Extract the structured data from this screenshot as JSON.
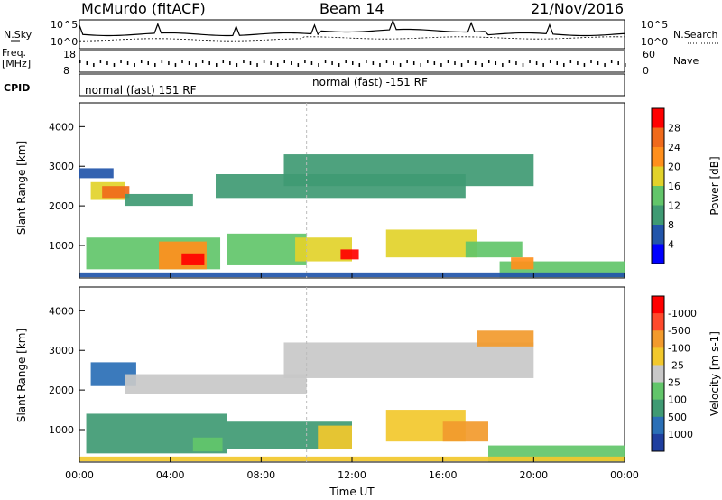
{
  "header": {
    "station": "McMurdo (fitACF)",
    "beam": "Beam 14",
    "date": "21/Nov/2016"
  },
  "info_panels": {
    "nsky_label": "N.Sky",
    "nsearch_label": "N.Search",
    "freq_label_1": "Freq.",
    "freq_label_2": "[MHz]",
    "nave_label": "Nave",
    "cpid_label": "CPID",
    "nsky_ticks": [
      "10^5",
      "10^0"
    ],
    "nsearch_ticks": [
      "10^5",
      "10^0"
    ],
    "freq_ticks": [
      "18",
      "8"
    ],
    "nave_ticks": [
      "60",
      "0"
    ],
    "cpid_segments": [
      "normal (fast) 151 RF",
      "normal (fast) -151 RF"
    ]
  },
  "chart_data": [
    {
      "type": "heatmap",
      "title": "",
      "xlabel": "Time UT",
      "ylabel": "Slant Range [km]",
      "x_ticks": [
        "00:00",
        "04:00",
        "08:00",
        "12:00",
        "16:00",
        "20:00",
        "00:00"
      ],
      "y_ticks": [
        "1000",
        "2000",
        "3000",
        "4000"
      ],
      "ylim": [
        180,
        4600
      ],
      "colorbar": {
        "label": "Power [dB]",
        "ticks": [
          "4",
          "8",
          "12",
          "16",
          "20",
          "24",
          "28"
        ],
        "colors": [
          "#0000ff",
          "#2255aa",
          "#3f9a73",
          "#62c56a",
          "#e2d22a",
          "#ff8f1c",
          "#f06a1b",
          "#ff0000"
        ]
      },
      "patches": [
        {
          "t0": 0.5,
          "t1": 2.0,
          "r0": 2150,
          "r1": 2600,
          "level": 4
        },
        {
          "t0": 1.0,
          "t1": 2.2,
          "r0": 2200,
          "r1": 2500,
          "level": 6
        },
        {
          "t0": 0.0,
          "t1": 1.5,
          "r0": 2700,
          "r1": 2950,
          "level": 1
        },
        {
          "t0": 2.0,
          "t1": 5.0,
          "r0": 2000,
          "r1": 2300,
          "level": 2
        },
        {
          "t0": 0.3,
          "t1": 6.2,
          "r0": 400,
          "r1": 1200,
          "level": 3
        },
        {
          "t0": 3.5,
          "t1": 5.6,
          "r0": 400,
          "r1": 1100,
          "level": 5
        },
        {
          "t0": 4.5,
          "t1": 5.5,
          "r0": 500,
          "r1": 800,
          "level": 7
        },
        {
          "t0": 6.5,
          "t1": 10.0,
          "r0": 500,
          "r1": 1300,
          "level": 3
        },
        {
          "t0": 9.5,
          "t1": 12.0,
          "r0": 600,
          "r1": 1200,
          "level": 4
        },
        {
          "t0": 11.5,
          "t1": 12.3,
          "r0": 650,
          "r1": 900,
          "level": 7
        },
        {
          "t0": 6.0,
          "t1": 17.0,
          "r0": 2200,
          "r1": 2800,
          "level": 2
        },
        {
          "t0": 9.0,
          "t1": 20.0,
          "r0": 2500,
          "r1": 3300,
          "level": 2
        },
        {
          "t0": 13.5,
          "t1": 17.5,
          "r0": 700,
          "r1": 1400,
          "level": 4
        },
        {
          "t0": 17.0,
          "t1": 19.5,
          "r0": 700,
          "r1": 1100,
          "level": 3
        },
        {
          "t0": 18.5,
          "t1": 24.0,
          "r0": 200,
          "r1": 600,
          "level": 3
        },
        {
          "t0": 19.0,
          "t1": 20.0,
          "r0": 400,
          "r1": 700,
          "level": 5
        },
        {
          "t0": 0.0,
          "t1": 24.0,
          "r0": 200,
          "r1": 320,
          "level": 1
        }
      ]
    },
    {
      "type": "heatmap",
      "title": "",
      "xlabel": "Time UT",
      "ylabel": "Slant Range [km]",
      "x_ticks": [
        "00:00",
        "04:00",
        "08:00",
        "12:00",
        "16:00",
        "20:00",
        "00:00"
      ],
      "y_ticks": [
        "1000",
        "2000",
        "3000",
        "4000"
      ],
      "ylim": [
        180,
        4600
      ],
      "colorbar": {
        "label": "Velocity [m s-1]",
        "ticks": [
          "1000",
          "500",
          "100",
          "25",
          "-25",
          "-100",
          "-500",
          "-1000"
        ],
        "colors": [
          "#1f3f9f",
          "#2a6fb6",
          "#3f9a73",
          "#62c56a",
          "#c8c8c8",
          "#f2c82c",
          "#f29a2c",
          "#ff4a2c",
          "#ff0000"
        ]
      },
      "patches": [
        {
          "t0": 0.5,
          "t1": 2.5,
          "r0": 2100,
          "r1": 2700,
          "level": 1
        },
        {
          "t0": 2.0,
          "t1": 10.0,
          "r0": 1900,
          "r1": 2400,
          "level": 4
        },
        {
          "t0": 9.0,
          "t1": 20.0,
          "r0": 2300,
          "r1": 3200,
          "level": 4
        },
        {
          "t0": 0.3,
          "t1": 6.5,
          "r0": 400,
          "r1": 1400,
          "level": 2
        },
        {
          "t0": 5.0,
          "t1": 6.3,
          "r0": 450,
          "r1": 800,
          "level": 3
        },
        {
          "t0": 6.5,
          "t1": 12.0,
          "r0": 500,
          "r1": 1200,
          "level": 2
        },
        {
          "t0": 10.5,
          "t1": 12.0,
          "r0": 500,
          "r1": 1100,
          "level": 5
        },
        {
          "t0": 13.5,
          "t1": 17.0,
          "r0": 700,
          "r1": 1500,
          "level": 5
        },
        {
          "t0": 16.0,
          "t1": 18.0,
          "r0": 700,
          "r1": 1200,
          "level": 6
        },
        {
          "t0": 18.0,
          "t1": 24.0,
          "r0": 200,
          "r1": 600,
          "level": 3
        },
        {
          "t0": 17.5,
          "t1": 20.0,
          "r0": 3100,
          "r1": 3500,
          "level": 6
        },
        {
          "t0": 0.0,
          "t1": 24.0,
          "r0": 200,
          "r1": 320,
          "level": 5
        }
      ]
    }
  ]
}
